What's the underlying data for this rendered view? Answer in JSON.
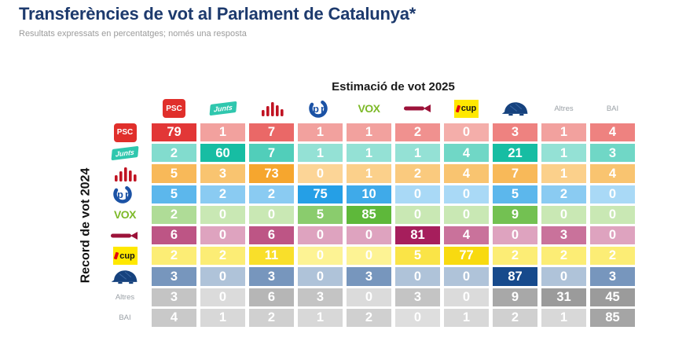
{
  "title": "Transferències de vot al Parlament de Catalunya*",
  "subtitle": "Resultats expressats en percentatges; només una resposta",
  "parties": [
    {
      "id": "psc",
      "name": "PSC",
      "logo_text": "PSC",
      "logo_color": "#e02f2b",
      "cell_light": "#f6b8b4",
      "cell_dark": "#e23737"
    },
    {
      "id": "junts",
      "name": "Junts",
      "logo_text": "Junts",
      "logo_color": "#2fc7ae",
      "cell_light": "#b0e9e0",
      "cell_dark": "#17bda3"
    },
    {
      "id": "erc",
      "name": "ERC",
      "logo_text": "",
      "logo_color": "#c01322",
      "cell_light": "#fcd9a0",
      "cell_dark": "#f6a62e"
    },
    {
      "id": "pp",
      "name": "PP",
      "logo_text": "PP",
      "logo_color": "#1b52a5",
      "cell_light": "#b5def7",
      "cell_dark": "#259fe6"
    },
    {
      "id": "vox",
      "name": "VOX",
      "logo_text": "VOX",
      "logo_color": "#7db928",
      "cell_light": "#d2ecbf",
      "cell_dark": "#5eb83a"
    },
    {
      "id": "comuns",
      "name": "Comuns",
      "logo_text": "",
      "logo_color": "#9c1239",
      "cell_light": "#e3afc8",
      "cell_dark": "#a61e5c"
    },
    {
      "id": "cup",
      "name": "CUP",
      "logo_text": "cup",
      "logo_color": "#ffe800",
      "cell_light": "#fdf5a0",
      "cell_dark": "#f8da10"
    },
    {
      "id": "ac",
      "name": "Aliança Catalana",
      "logo_text": "",
      "logo_color": "#16427e",
      "cell_light": "#bccde0",
      "cell_dark": "#174a8c"
    },
    {
      "id": "altres",
      "name": "Altres",
      "logo_text": "Altres",
      "logo_color": "#9aa0a6",
      "cell_light": "#e1e1e1",
      "cell_dark": "#9b9b9b"
    },
    {
      "id": "bai",
      "name": "BAI",
      "logo_text": "BAI",
      "logo_color": "#9aa0a6",
      "cell_light": "#e3e3e3",
      "cell_dark": "#a5a5a5"
    }
  ],
  "chart_data": {
    "type": "heatmap",
    "title": "Transferències de vot al Parlament de Catalunya*",
    "subtitle": "Resultats expressats en percentatges; només una resposta",
    "units": "percent",
    "x_axis_label": "Estimació de vot 2025",
    "y_axis_label": "Record de vot 2024",
    "columns": [
      "PSC",
      "Junts",
      "ERC",
      "PP",
      "VOX",
      "Comuns",
      "CUP",
      "Aliança Catalana",
      "Altres",
      "BAI"
    ],
    "rows": [
      "PSC",
      "Junts",
      "ERC",
      "PP",
      "VOX",
      "Comuns",
      "CUP",
      "Aliança Catalana",
      "Altres",
      "BAI"
    ],
    "matrix": [
      [
        79,
        1,
        7,
        1,
        1,
        2,
        0,
        3,
        1,
        4
      ],
      [
        2,
        60,
        7,
        1,
        1,
        1,
        4,
        21,
        1,
        3
      ],
      [
        5,
        3,
        73,
        0,
        1,
        2,
        4,
        7,
        1,
        4
      ],
      [
        5,
        2,
        2,
        75,
        10,
        0,
        0,
        5,
        2,
        0
      ],
      [
        2,
        0,
        0,
        5,
        85,
        0,
        0,
        9,
        0,
        0
      ],
      [
        6,
        0,
        6,
        0,
        0,
        81,
        4,
        0,
        3,
        0
      ],
      [
        2,
        2,
        11,
        0,
        0,
        5,
        77,
        2,
        2,
        2
      ],
      [
        3,
        0,
        3,
        0,
        3,
        0,
        0,
        87,
        0,
        3
      ],
      [
        3,
        0,
        6,
        3,
        0,
        3,
        0,
        9,
        31,
        45
      ],
      [
        4,
        1,
        2,
        1,
        2,
        0,
        1,
        2,
        1,
        85
      ]
    ]
  }
}
